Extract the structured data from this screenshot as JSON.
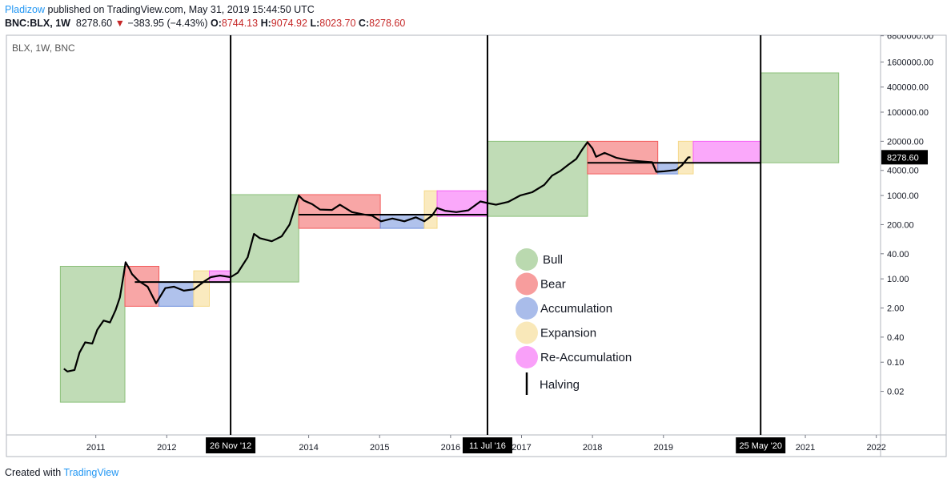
{
  "header": {
    "author": "Pladizow",
    "published": "published on TradingView.com, May 31, 2019 15:44:50 UTC",
    "symbol": "BNC:BLX, 1W",
    "last": "8278.60",
    "direction": "▼",
    "change": "−383.95 (−4.43%)",
    "open_label": "O:",
    "open": "8744.13",
    "high_label": "H:",
    "high": "9074.92",
    "low_label": "L:",
    "low": "8023.70",
    "close_label": "C:",
    "close": "8278.60"
  },
  "footer": {
    "text": "Created with",
    "brand": "TradingView"
  },
  "chart_data": {
    "type": "line",
    "subtitle": "BLX, 1W, BNC",
    "log_scale": true,
    "xlim": [
      2009.74,
      2022.06
    ],
    "xticks": [
      2011,
      2012,
      2014,
      2015,
      2016,
      2017,
      2018,
      2019,
      2021,
      2022
    ],
    "ylim": [
      0.0018,
      7000000
    ],
    "yticks": [
      {
        "value": 6800000,
        "label": "6800000.00"
      },
      {
        "value": 1600000,
        "label": "1600000.00"
      },
      {
        "value": 400000,
        "label": "400000.00"
      },
      {
        "value": 100000,
        "label": "100000.00"
      },
      {
        "value": 20000,
        "label": "20000.00"
      },
      {
        "value": 4000,
        "label": "4000.00"
      },
      {
        "value": 1000,
        "label": "1000.00"
      },
      {
        "value": 200,
        "label": "200.00"
      },
      {
        "value": 40,
        "label": "40.00"
      },
      {
        "value": 10,
        "label": "10.00"
      },
      {
        "value": 2,
        "label": "2.00"
      },
      {
        "value": 0.4,
        "label": "0.40"
      },
      {
        "value": 0.1,
        "label": "0.10"
      },
      {
        "value": 0.02,
        "label": "0.02"
      }
    ],
    "price_tag": {
      "value": 8278.6,
      "label": "8278.60"
    },
    "x": [
      2010.55,
      2010.6,
      2010.7,
      2010.77,
      2010.85,
      2010.95,
      2011.02,
      2011.11,
      2011.2,
      2011.28,
      2011.34,
      2011.39,
      2011.42,
      2011.47,
      2011.51,
      2011.6,
      2011.73,
      2011.85,
      2011.9,
      2011.98,
      2012.1,
      2012.24,
      2012.38,
      2012.52,
      2012.62,
      2012.75,
      2012.9,
      2013.0,
      2013.14,
      2013.23,
      2013.31,
      2013.48,
      2013.62,
      2013.73,
      2013.8,
      2013.86,
      2013.93,
      2014.05,
      2014.16,
      2014.33,
      2014.44,
      2014.61,
      2014.78,
      2014.89,
      2015.02,
      2015.18,
      2015.35,
      2015.51,
      2015.63,
      2015.74,
      2015.81,
      2015.92,
      2016.08,
      2016.25,
      2016.42,
      2016.52,
      2016.64,
      2016.81,
      2016.98,
      2017.15,
      2017.32,
      2017.43,
      2017.55,
      2017.66,
      2017.77,
      2017.86,
      2017.93,
      2018.0,
      2018.05,
      2018.17,
      2018.34,
      2018.51,
      2018.67,
      2018.84,
      2018.9,
      2019.01,
      2019.18,
      2019.26,
      2019.35,
      2019.38
    ],
    "series": [
      {
        "color": "#000000",
        "values": [
          0.07,
          0.06,
          0.065,
          0.17,
          0.3,
          0.28,
          0.6,
          1,
          0.9,
          1.8,
          3.6,
          12,
          25,
          18,
          13,
          9,
          6.5,
          2.6,
          3.6,
          6,
          6.5,
          5.2,
          5.6,
          8.5,
          11,
          12,
          11,
          14,
          33,
          120,
          95,
          80,
          105,
          200,
          480,
          1000,
          760,
          620,
          460,
          450,
          600,
          400,
          350,
          330,
          240,
          280,
          240,
          300,
          240,
          330,
          500,
          430,
          400,
          440,
          720,
          660,
          600,
          700,
          1000,
          1200,
          1800,
          3000,
          3900,
          5500,
          7500,
          13000,
          19000,
          13500,
          8500,
          10500,
          8000,
          7000,
          6600,
          6300,
          3700,
          3800,
          4100,
          5300,
          8200,
          8278.6
        ]
      }
    ],
    "phases": [
      {
        "name": "Bull",
        "color": "#8cc07a",
        "boxes": [
          {
            "x": [
              2010.5,
              2011.41
            ],
            "y": [
              0.011,
              20
            ]
          },
          {
            "x": [
              2012.9,
              2013.86
            ],
            "y": [
              8.4,
              1050
            ]
          },
          {
            "x": [
              2016.52,
              2017.93
            ],
            "y": [
              316,
              20000
            ]
          },
          {
            "x": [
              2020.37,
              2021.47
            ],
            "y": [
              6100,
              875000
            ]
          }
        ]
      },
      {
        "name": "Bear",
        "color": "#f25c5c",
        "boxes": [
          {
            "x": [
              2011.41,
              2011.89
            ],
            "y": [
              2.2,
              20
            ]
          },
          {
            "x": [
              2013.86,
              2015.01
            ],
            "y": [
              163,
              1050
            ]
          },
          {
            "x": [
              2017.93,
              2018.92
            ],
            "y": [
              3300,
              20000
            ]
          }
        ]
      },
      {
        "name": "Accumulation",
        "color": "#6f8fdc",
        "boxes": [
          {
            "x": [
              2011.89,
              2012.38
            ],
            "y": [
              2.2,
              8.4
            ]
          },
          {
            "x": [
              2015.01,
              2015.63
            ],
            "y": [
              163,
              346
            ]
          },
          {
            "x": [
              2018.92,
              2019.21
            ],
            "y": [
              3300,
              6100
            ]
          }
        ]
      },
      {
        "name": "Expansion",
        "color": "#f5d98a",
        "boxes": [
          {
            "x": [
              2012.38,
              2012.6
            ],
            "y": [
              2.2,
              15.6
            ]
          },
          {
            "x": [
              2015.63,
              2015.81
            ],
            "y": [
              163,
              1300
            ]
          },
          {
            "x": [
              2019.21,
              2019.42
            ],
            "y": [
              3300,
              20000
            ]
          }
        ]
      },
      {
        "name": "Re-Accumulation",
        "color": "#f560f5",
        "boxes": [
          {
            "x": [
              2012.6,
              2012.9
            ],
            "y": [
              8.4,
              15.6
            ]
          },
          {
            "x": [
              2015.81,
              2016.51
            ],
            "y": [
              316,
              1300
            ]
          },
          {
            "x": [
              2019.42,
              2020.37
            ],
            "y": [
              6100,
              20000
            ]
          }
        ]
      }
    ],
    "levels": [
      {
        "x": [
          2011.55,
          2012.9
        ],
        "y": 8.4
      },
      {
        "x": [
          2013.86,
          2016.52
        ],
        "y": 346
      },
      {
        "x": [
          2017.93,
          2020.37
        ],
        "y": 6100
      }
    ],
    "halvings": {
      "name": "Halving",
      "dates": [
        {
          "x": 2012.9,
          "label": "26 Nov '12"
        },
        {
          "x": 2016.52,
          "label": "11 Jul '16"
        },
        {
          "x": 2020.37,
          "label": "25 May '20"
        }
      ]
    }
  }
}
